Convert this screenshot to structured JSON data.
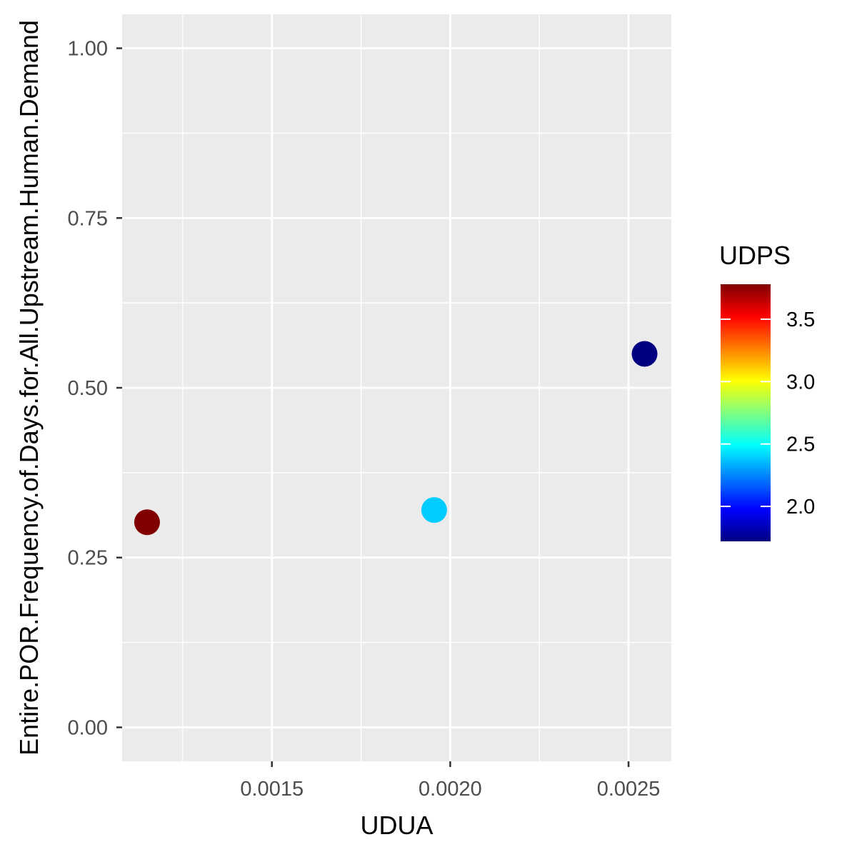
{
  "chart_data": {
    "type": "scatter",
    "title": "",
    "xlabel": "UDUA",
    "ylabel": "Entire.POR.Frequency.of.Days.for.All.Upstream.Human.Demand",
    "xlim": [
      0.00108,
      0.00262
    ],
    "ylim": [
      -0.05,
      1.05
    ],
    "x_ticks": [
      0.0015,
      0.002,
      0.0025
    ],
    "x_tick_labels": [
      "0.0015",
      "0.0020",
      "0.0025"
    ],
    "y_ticks": [
      0,
      0.25,
      0.5,
      0.75,
      1
    ],
    "y_tick_labels": [
      "0.00",
      "0.25",
      "0.50",
      "0.75",
      "1.00"
    ],
    "grid": true,
    "points": [
      {
        "x": 0.00115,
        "y": 0.302,
        "udps": 3.75,
        "color": "#800000"
      },
      {
        "x": 0.001955,
        "y": 0.32,
        "udps": 2.3,
        "color": "#00CCFF"
      },
      {
        "x": 0.002545,
        "y": 0.55,
        "udps": 1.75,
        "color": "#000080"
      }
    ],
    "legend": {
      "title": "UDPS",
      "placement": "right",
      "range": [
        1.72,
        3.78
      ],
      "ticks": [
        2.0,
        2.5,
        3.0,
        3.5
      ],
      "tick_labels": [
        "2.0",
        "2.5",
        "3.0",
        "3.5"
      ],
      "colormap": [
        "#00007F",
        "#0000FF",
        "#007FFF",
        "#00FFFF",
        "#7FFF7F",
        "#FFFF00",
        "#FF7F00",
        "#FF0000",
        "#7F0000"
      ]
    },
    "colors": {
      "panel_background": "#EBEBEB",
      "gridline": "#FFFFFF",
      "tick_color": "#333333"
    }
  }
}
